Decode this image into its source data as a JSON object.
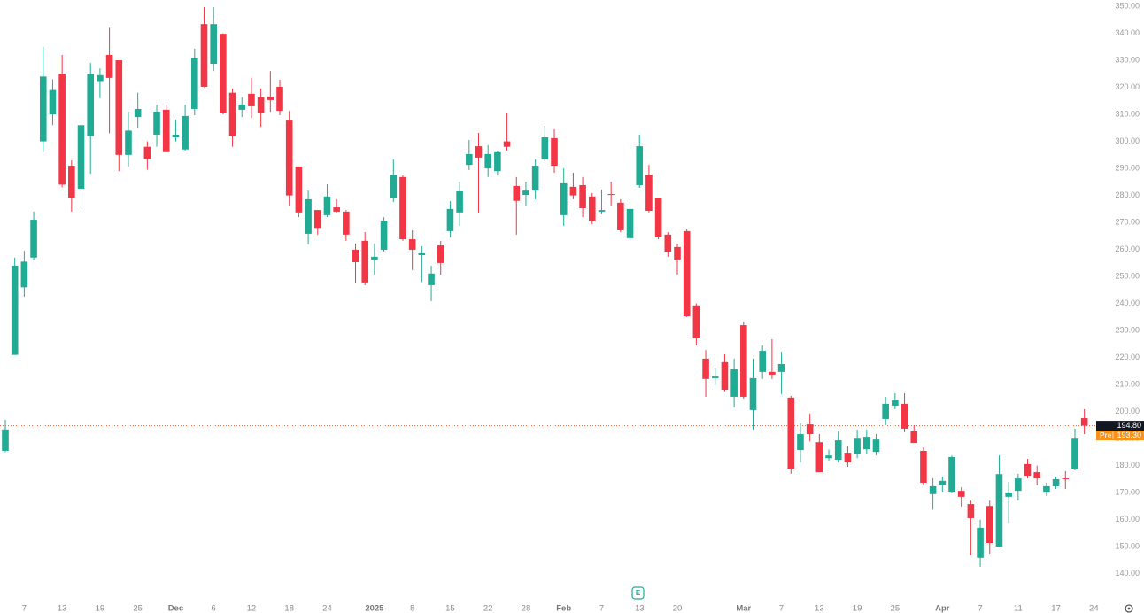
{
  "chart_data": {
    "type": "candlestick",
    "up_color": "#22ab94",
    "down_color": "#f23645",
    "grid": false,
    "ylim": [
      136,
      352.3
    ],
    "yticks": [
      {
        "value": 140,
        "label": "140.00"
      },
      {
        "value": 150,
        "label": "150.00"
      },
      {
        "value": 160,
        "label": "160.00"
      },
      {
        "value": 170,
        "label": "170.00"
      },
      {
        "value": 180,
        "label": "180.00"
      },
      {
        "value": 190,
        "label": "190.00"
      },
      {
        "value": 200,
        "label": "200.00"
      },
      {
        "value": 210,
        "label": "210.00"
      },
      {
        "value": 220,
        "label": "220.00"
      },
      {
        "value": 230,
        "label": "230.00"
      },
      {
        "value": 240,
        "label": "240.00"
      },
      {
        "value": 250,
        "label": "250.00"
      },
      {
        "value": 260,
        "label": "260.00"
      },
      {
        "value": 270,
        "label": "270.00"
      },
      {
        "value": 280,
        "label": "280.00"
      },
      {
        "value": 290,
        "label": "290.00"
      },
      {
        "value": 300,
        "label": "300.00"
      },
      {
        "value": 310,
        "label": "310.00"
      },
      {
        "value": 320,
        "label": "320.00"
      },
      {
        "value": 330,
        "label": "330.00"
      },
      {
        "value": 340,
        "label": "340.00"
      },
      {
        "value": 350,
        "label": "350.00"
      }
    ],
    "categories": [
      null,
      null,
      "7",
      null,
      null,
      null,
      "13",
      null,
      null,
      null,
      "19",
      null,
      null,
      null,
      "25",
      null,
      null,
      null,
      "Dec",
      null,
      null,
      null,
      "6",
      null,
      null,
      null,
      "12",
      null,
      null,
      null,
      "18",
      null,
      null,
      null,
      "24",
      null,
      null,
      null,
      null,
      "2025",
      null,
      null,
      null,
      "8",
      null,
      null,
      null,
      "15",
      null,
      null,
      null,
      "22",
      null,
      null,
      null,
      "28",
      null,
      null,
      null,
      "Feb",
      null,
      null,
      null,
      "7",
      null,
      null,
      null,
      "13",
      null,
      null,
      null,
      "20",
      null,
      null,
      null,
      null,
      null,
      null,
      "Mar",
      null,
      null,
      null,
      "7",
      null,
      null,
      null,
      "13",
      null,
      null,
      null,
      "19",
      null,
      null,
      null,
      "25",
      null,
      null,
      null,
      null,
      "Apr",
      null,
      null,
      null,
      "7",
      null,
      null,
      null,
      "11",
      null,
      null,
      null,
      "17",
      null,
      null,
      null,
      "24"
    ],
    "open": [
      185.5,
      221,
      246,
      257,
      300,
      310,
      325,
      291,
      282.5,
      302,
      322,
      332,
      330,
      295,
      309,
      298,
      302.5,
      311.7,
      301.5,
      297,
      312,
      343.4,
      328.7,
      339.8,
      318,
      311.7,
      317.6,
      316.3,
      316.6,
      320.2,
      307.7,
      290.7,
      265.8,
      274.6,
      272.7,
      275.6,
      274,
      259.9,
      263.2,
      256.3,
      259.9,
      278.9,
      286.8,
      263.8,
      257.9,
      246.8,
      261.5,
      266.8,
      273.7,
      291.3,
      298.2,
      290,
      289,
      300,
      283.5,
      280.2,
      281.8,
      293.3,
      301.2,
      272.7,
      283.2,
      283.8,
      279.6,
      274,
      280.5,
      277.3,
      264.2,
      283.8,
      287.7,
      278.9,
      265.5,
      260.9,
      266.8,
      239.3,
      219.6,
      212.4,
      218.3,
      205.5,
      232,
      200.6,
      214.7,
      214.7,
      214.7,
      205.2,
      185.8,
      195.3,
      188.7,
      182.8,
      182.2,
      184.8,
      184.5,
      186.1,
      185.1,
      197.3,
      202.2,
      202.9,
      192.7,
      185.5,
      169.5,
      172.7,
      170.4,
      170.7,
      165.8,
      145.9,
      165.1,
      150.1,
      168.5,
      170.7,
      180.6,
      177.6,
      170.4,
      172.4,
      175.3,
      178.6,
      197.6,
      null
    ],
    "high": [
      197,
      257,
      259.5,
      274,
      335,
      323,
      332,
      293,
      306.5,
      329,
      327,
      342,
      330,
      311,
      318,
      300,
      313.6,
      313.6,
      308,
      313.6,
      334.3,
      349.7,
      349.7,
      340,
      319.5,
      316.3,
      323.5,
      319.5,
      326,
      322.8,
      311.3,
      290.7,
      281.8,
      274.6,
      284.1,
      278.6,
      274.6,
      262.2,
      266.4,
      262.2,
      272,
      293.3,
      287.4,
      267.1,
      261.2,
      254,
      263.2,
      277.9,
      285.1,
      300.5,
      303.1,
      298.6,
      296.6,
      310.4,
      286.8,
      285.1,
      293.3,
      305.8,
      304.5,
      290,
      288.4,
      286.8,
      280.9,
      282.2,
      285.1,
      278.6,
      278.6,
      302.5,
      291.3,
      278.9,
      266.4,
      262.2,
      267.4,
      240,
      222.8,
      216.3,
      221.2,
      219.6,
      233.4,
      219.6,
      224.5,
      226.8,
      222.2,
      205.8,
      195.7,
      199.3,
      191.7,
      186,
      192.7,
      187.1,
      193.4,
      193.4,
      191.7,
      205.5,
      206.8,
      206.8,
      195,
      186.8,
      175.4,
      176,
      183.8,
      172,
      167.1,
      160,
      167.1,
      183.8,
      174,
      177,
      182.5,
      180,
      173.7,
      176,
      178,
      193.7,
      200.9,
      null
    ],
    "low": [
      185,
      221,
      242.5,
      256,
      296,
      306,
      283,
      274,
      276,
      288,
      316,
      303,
      289,
      290.7,
      305,
      289.5,
      298,
      296,
      300,
      296.6,
      309.7,
      320,
      326,
      310,
      298,
      309,
      308.7,
      305.4,
      311,
      309.7,
      276.3,
      272,
      261.9,
      265.5,
      272,
      273.7,
      263.2,
      247.4,
      246.8,
      250.7,
      258.9,
      277.6,
      263.2,
      252.4,
      248,
      240.9,
      250.7,
      264.5,
      268.7,
      289.4,
      273.7,
      286.8,
      287.4,
      296.6,
      265.5,
      276.3,
      278.6,
      292.7,
      288.4,
      268.7,
      278.6,
      272,
      269.4,
      273,
      276.3,
      266.4,
      263.2,
      282.8,
      273.7,
      263.8,
      257.3,
      250.7,
      235,
      224.5,
      205.5,
      209.8,
      207.5,
      201.6,
      204.8,
      193.4,
      212.1,
      212.1,
      206.5,
      177,
      181.2,
      189,
      177.6,
      181.9,
      181.2,
      179.6,
      182.8,
      184.5,
      183.8,
      195,
      200.9,
      192.4,
      188.4,
      172.7,
      163.7,
      170.4,
      170.1,
      164.9,
      146.9,
      142.6,
      147.5,
      149.8,
      158.9,
      167.1,
      175.3,
      172.7,
      168.8,
      171.4,
      171.4,
      178.3,
      191.7,
      null
    ],
    "close": [
      193.4,
      254,
      255.5,
      271,
      324,
      319,
      284,
      279,
      306,
      325,
      324.5,
      323.5,
      295,
      304,
      312,
      293.5,
      311,
      296,
      302.5,
      309.4,
      330.7,
      320.2,
      343.4,
      310.4,
      302,
      313.6,
      313,
      310.4,
      315.3,
      311.3,
      280,
      273.7,
      278.6,
      268,
      279.6,
      274,
      265.5,
      255.3,
      247.8,
      257.3,
      270.7,
      287.7,
      263.8,
      259.9,
      258.6,
      251.1,
      255,
      275,
      281.5,
      295.3,
      294,
      295.3,
      296,
      298,
      278,
      281.8,
      291,
      301.5,
      291,
      284.5,
      280,
      275.3,
      270.4,
      274.6,
      280.2,
      267.1,
      275,
      298.2,
      274.3,
      264.5,
      259.2,
      256.3,
      235.3,
      227.1,
      212.1,
      213,
      208.1,
      215.7,
      205.5,
      212.4,
      222.5,
      213.7,
      217.6,
      178.9,
      191.7,
      191.7,
      177.6,
      183.8,
      189.4,
      181.2,
      190,
      190.7,
      189.7,
      202.9,
      204.2,
      193.7,
      188.4,
      173.7,
      172.4,
      174.4,
      183.2,
      168.5,
      160.6,
      157,
      151.4,
      176.9,
      170.1,
      175.3,
      176.3,
      175.3,
      172.4,
      175,
      175,
      190,
      194.8,
      null
    ],
    "last_price": {
      "value": 194.8,
      "value_label": "194.80"
    },
    "pre_market": {
      "label": "Pre",
      "value": 193.3,
      "value_label": "193.30"
    },
    "earnings_marker": "E"
  }
}
